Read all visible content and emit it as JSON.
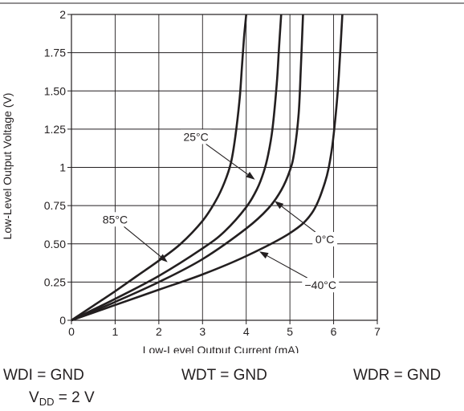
{
  "chart_data": {
    "type": "line",
    "title": "",
    "xlabel": "Low-Level Output Current (mA)",
    "ylabel": "Low-Level Output Voltage (V)",
    "xlim": [
      0,
      7
    ],
    "ylim": [
      0,
      2
    ],
    "x_ticks": [
      0,
      1,
      2,
      3,
      4,
      5,
      6,
      7
    ],
    "x_tick_labels": [
      "0",
      "1",
      "2",
      "3",
      "4",
      "5",
      "6",
      "7"
    ],
    "y_ticks": [
      0,
      0.25,
      0.5,
      0.75,
      1,
      1.25,
      1.5,
      1.75,
      2
    ],
    "y_tick_labels": [
      "0",
      "0.25",
      "0.50",
      "0.75",
      "1",
      "1.25",
      "1.50",
      "1.75",
      "2"
    ],
    "grid": true,
    "legend": "none (curves labeled by annotations)",
    "line_color": "#231f20",
    "series": [
      {
        "name": "85°C",
        "x": [
          0,
          0.5,
          1,
          1.5,
          2,
          2.5,
          3,
          3.3,
          3.5,
          3.65,
          3.75,
          3.85,
          3.9,
          3.95,
          4.0
        ],
        "y": [
          0,
          0.095,
          0.19,
          0.29,
          0.39,
          0.5,
          0.65,
          0.78,
          0.9,
          1.03,
          1.2,
          1.45,
          1.65,
          1.85,
          2.0
        ]
      },
      {
        "name": "25°C",
        "x": [
          0,
          0.5,
          1,
          2,
          3,
          3.5,
          4,
          4.25,
          4.4,
          4.5,
          4.6,
          4.7,
          4.75,
          4.8
        ],
        "y": [
          0,
          0.07,
          0.14,
          0.29,
          0.47,
          0.58,
          0.74,
          0.86,
          0.97,
          1.08,
          1.25,
          1.55,
          1.78,
          2.0
        ]
      },
      {
        "name": "0°C",
        "x": [
          0,
          0.5,
          1,
          2,
          3,
          4,
          4.5,
          4.8,
          5.0,
          5.1,
          5.2,
          5.25,
          5.3
        ],
        "y": [
          0,
          0.06,
          0.12,
          0.25,
          0.4,
          0.6,
          0.73,
          0.85,
          0.98,
          1.1,
          1.35,
          1.65,
          2.0
        ]
      },
      {
        "name": "−40°C",
        "x": [
          0,
          0.5,
          1,
          2,
          3,
          4,
          5,
          5.5,
          5.8,
          5.95,
          6.05,
          6.12,
          6.2
        ],
        "y": [
          0,
          0.05,
          0.1,
          0.2,
          0.3,
          0.42,
          0.57,
          0.7,
          0.9,
          1.1,
          1.35,
          1.6,
          2.0
        ]
      }
    ],
    "annotations": [
      {
        "text": "85°C",
        "target": [
          2.2,
          0.38
        ],
        "label_at": [
          1.0,
          0.66
        ]
      },
      {
        "text": "25°C",
        "target": [
          4.2,
          0.92
        ],
        "label_at": [
          2.85,
          1.2
        ]
      },
      {
        "text": "0°C",
        "target": [
          4.65,
          0.78
        ],
        "label_at": [
          5.8,
          0.53
        ]
      },
      {
        "text": "−40°C",
        "target": [
          4.3,
          0.45
        ],
        "label_at": [
          5.7,
          0.23
        ]
      }
    ]
  },
  "conditions": {
    "wdi": "WDI = GND",
    "wdt": "WDT = GND",
    "wdr": "WDR = GND",
    "vdd_symbol": "V",
    "vdd_subscript": "DD",
    "vdd_value": " = 2 V"
  }
}
